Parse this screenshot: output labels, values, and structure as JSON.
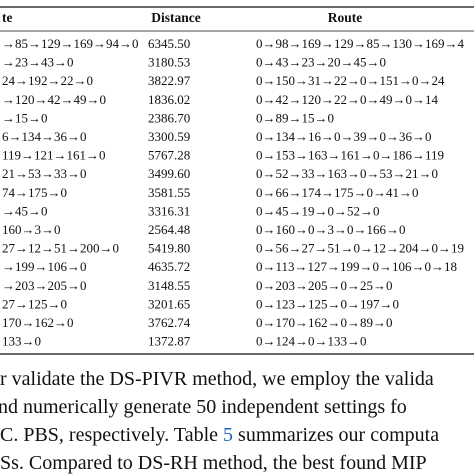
{
  "table": {
    "headers": [
      "te",
      "Distance",
      "Route"
    ],
    "rows": [
      [
        "→85→129→169→94→0",
        "6345.50",
        "0→98→169→129→85→130→169→4"
      ],
      [
        "→23→43→0",
        "3180.53",
        "0→43→23→20→45→0"
      ],
      [
        "24→192→22→0",
        "3822.97",
        "0→150→31→22→0→151→0→24"
      ],
      [
        "→120→42→49→0",
        "1836.02",
        "0→42→120→22→0→49→0→14"
      ],
      [
        "→15→0",
        "2386.70",
        "0→89→15→0"
      ],
      [
        "6→134→36→0",
        "3300.59",
        "0→134→16→0→39→0→36→0"
      ],
      [
        "119→121→161→0",
        "5767.28",
        "0→153→163→161→0→186→119"
      ],
      [
        "21→53→33→0",
        "3499.60",
        "0→52→33→163→0→53→21→0"
      ],
      [
        "74→175→0",
        "3581.55",
        "0→66→174→175→0→41→0"
      ],
      [
        "→45→0",
        "3316.31",
        "0→45→19→0→52→0"
      ],
      [
        "160→3→0",
        "2564.48",
        "0→160→0→3→0→166→0"
      ],
      [
        "27→12→51→200→0",
        "5419.80",
        "0→56→27→51→0→12→204→0→19"
      ],
      [
        "→199→106→0",
        "4635.72",
        "0→113→127→199→0→106→0→18"
      ],
      [
        "→203→205→0",
        "3148.55",
        "0→203→205→0→25→0"
      ],
      [
        "27→125→0",
        "3201.65",
        "0→123→125→0→197→0"
      ],
      [
        "170→162→0",
        "3762.74",
        "0→170→162→0→89→0"
      ],
      [
        "133→0",
        "1372.87",
        "0→124→0→133→0"
      ]
    ]
  },
  "paragraph": {
    "lines": [
      [
        "r validate the DS-PIVR method, we employ the valida"
      ],
      [
        "nd numerically generate 50 independent settings fo"
      ],
      [
        "C. PBS, respectively. Table ",
        "5",
        " summarizes our computa"
      ],
      [
        "Ss. Compared to DS-RH method, the best found MIP"
      ]
    ]
  }
}
